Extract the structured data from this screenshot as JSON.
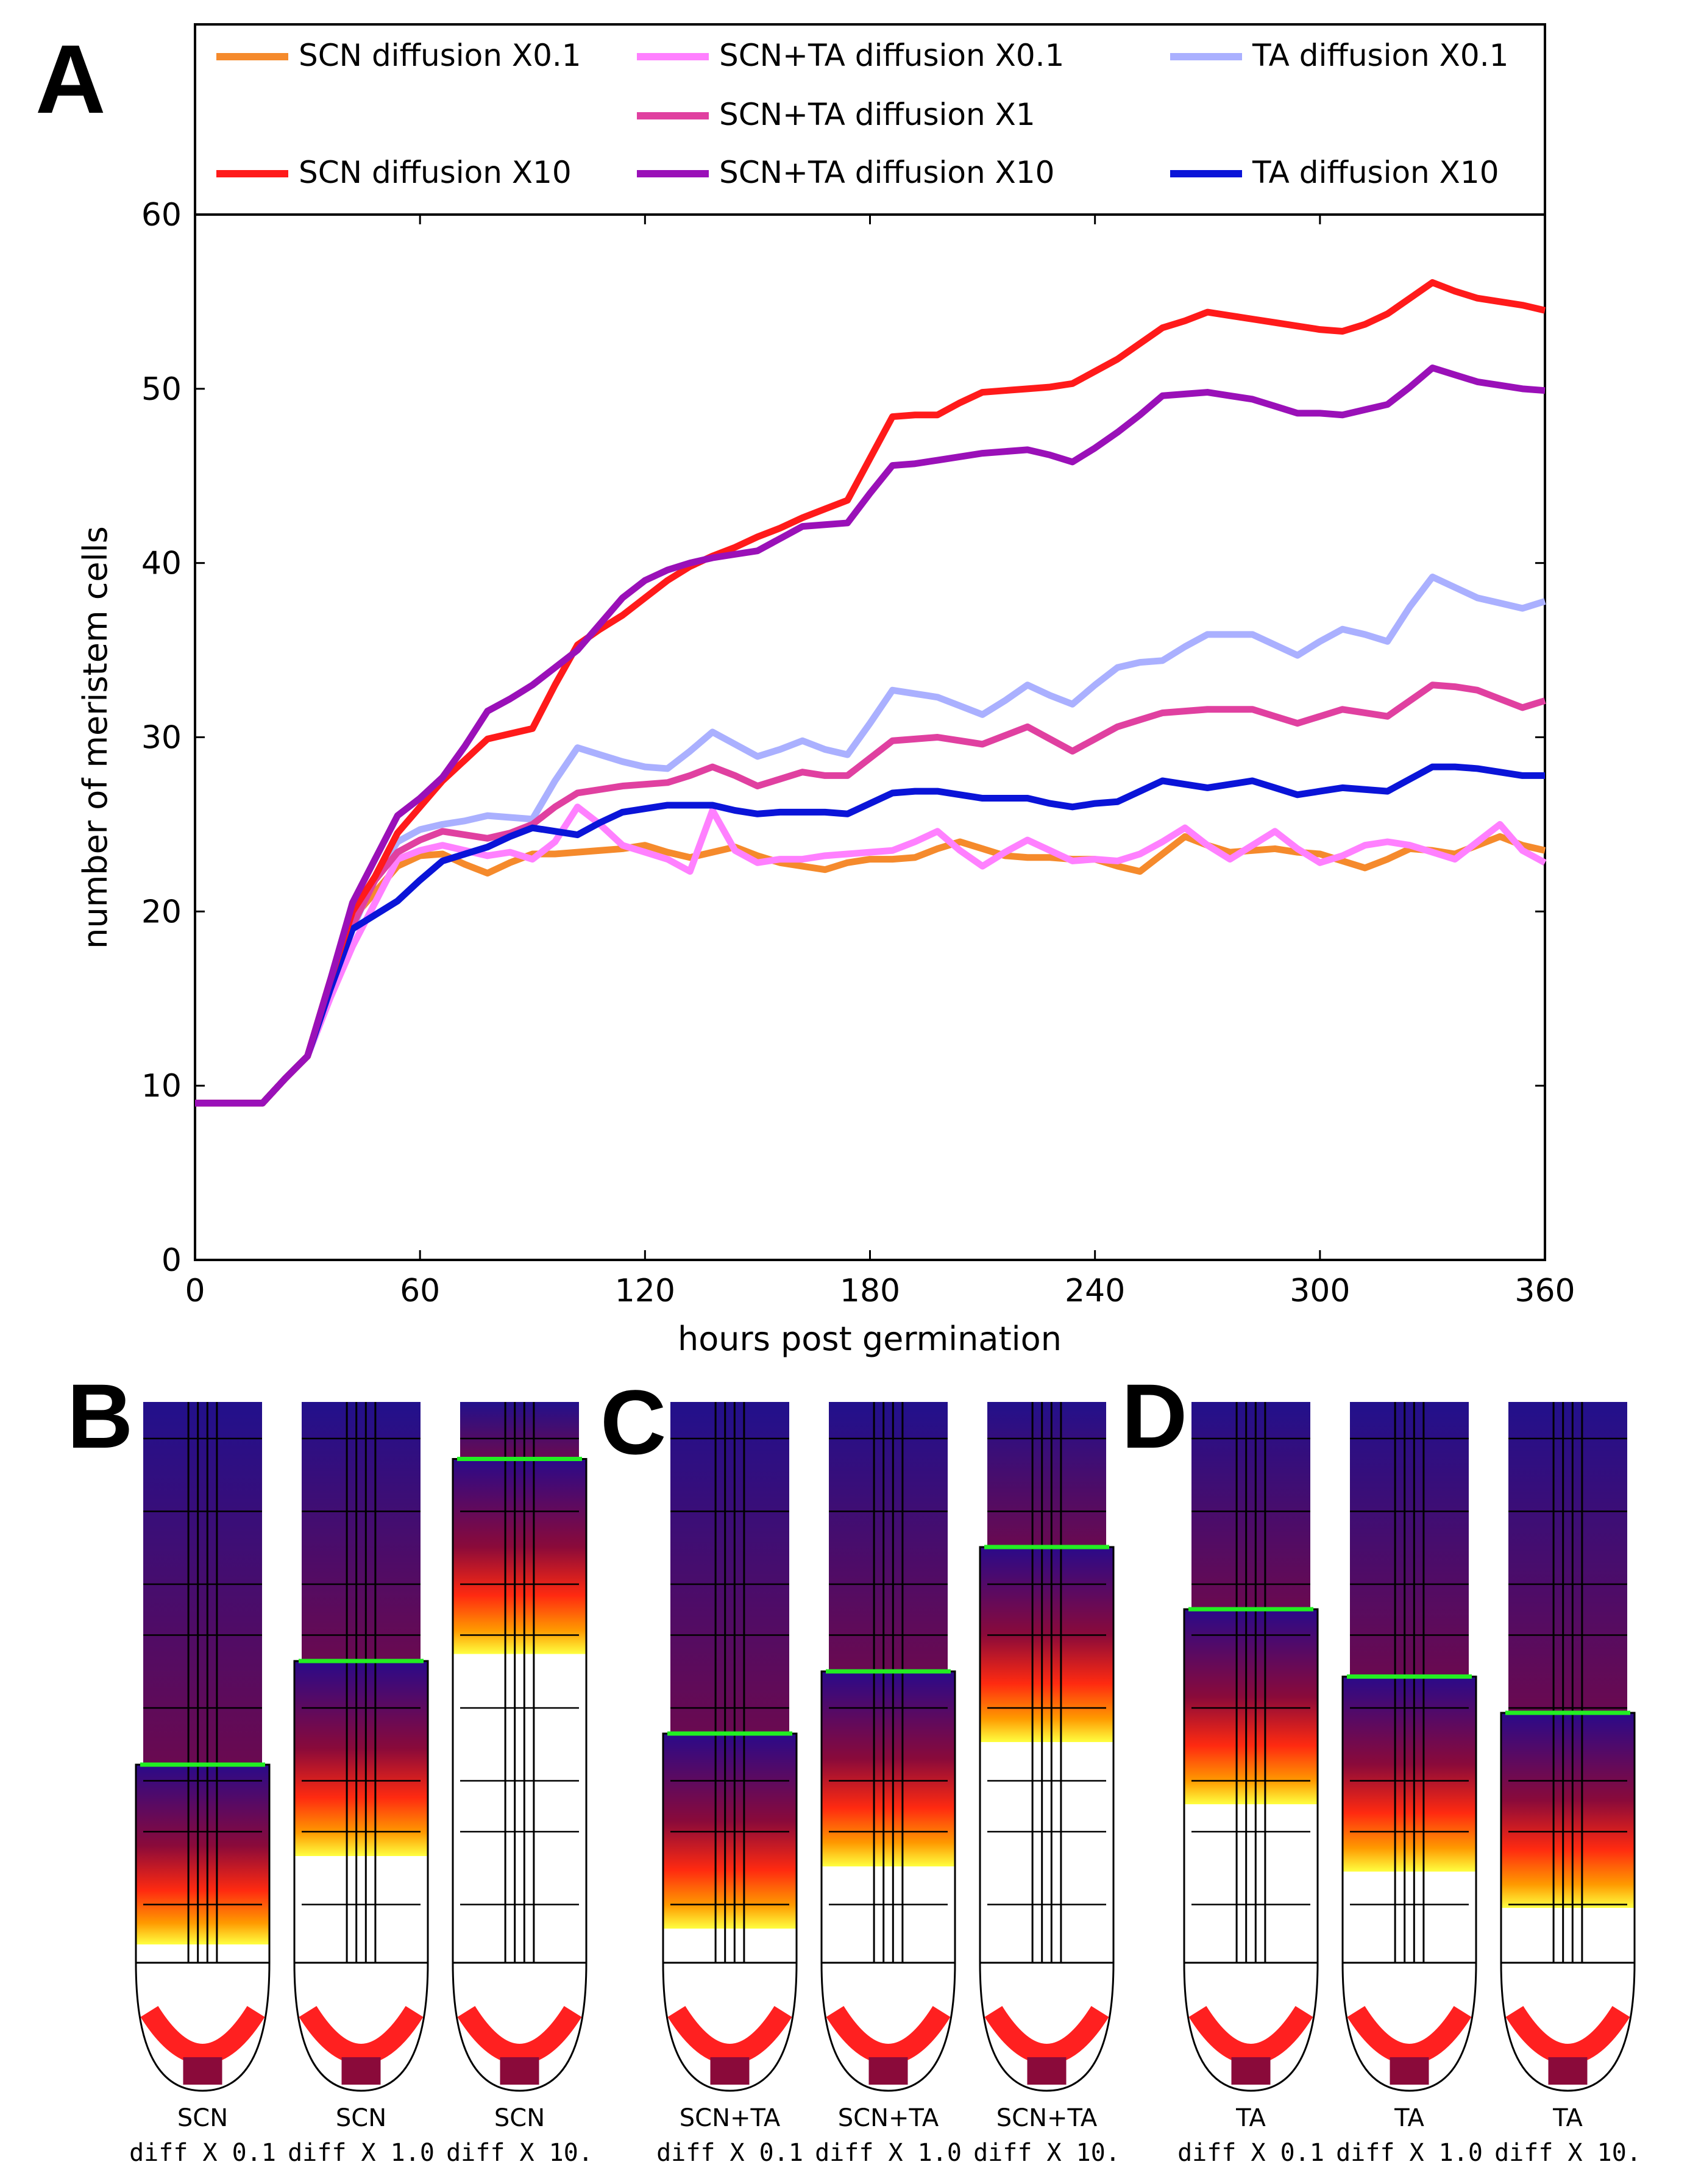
{
  "panels": {
    "A": "A",
    "B": "B",
    "C": "C",
    "D": "D"
  },
  "chart_data": {
    "type": "line",
    "title": "",
    "xlabel": "hours post germination",
    "ylabel": "number of meristem cells",
    "xlim": [
      0,
      360
    ],
    "ylim": [
      0,
      60
    ],
    "xticks": [
      0,
      60,
      120,
      180,
      240,
      300,
      360
    ],
    "yticks": [
      0,
      10,
      20,
      30,
      40,
      50,
      60
    ],
    "grid": false,
    "legend_position": "top",
    "x": [
      0,
      6,
      12,
      18,
      24,
      30,
      36,
      42,
      48,
      54,
      60,
      66,
      72,
      78,
      84,
      90,
      96,
      102,
      108,
      114,
      120,
      126,
      132,
      138,
      144,
      150,
      156,
      162,
      168,
      174,
      180,
      186,
      192,
      198,
      204,
      210,
      216,
      222,
      228,
      234,
      240,
      246,
      252,
      258,
      264,
      270,
      276,
      282,
      288,
      294,
      300,
      306,
      312,
      318,
      324,
      330,
      336,
      342,
      348,
      354,
      360
    ],
    "series": [
      {
        "name": "SCN diffusion X0.1",
        "color": "#f58a2c",
        "values": [
          9,
          9,
          9,
          9,
          10.4,
          11.7,
          15.5,
          19.6,
          21.1,
          22.6,
          23.2,
          23.3,
          22.7,
          22.2,
          22.8,
          23.3,
          23.3,
          23.4,
          23.5,
          23.6,
          23.8,
          23.4,
          23.1,
          23.4,
          23.7,
          23.2,
          22.8,
          22.6,
          22.4,
          22.8,
          23.0,
          23.0,
          23.1,
          23.6,
          24.0,
          23.6,
          23.2,
          23.1,
          23.1,
          23.0,
          23.0,
          22.6,
          22.3,
          23.3,
          24.3,
          23.8,
          23.4,
          23.5,
          23.6,
          23.4,
          23.3,
          22.9,
          22.5,
          23.0,
          23.6,
          23.5,
          23.3,
          23.8,
          24.3,
          23.8,
          23.5
        ]
      },
      {
        "name": "SCN+TA diffusion X0.1",
        "color": "#ff80ff",
        "values": [
          9,
          9,
          9,
          9,
          10.4,
          11.7,
          15.0,
          18.0,
          20.5,
          23.0,
          23.5,
          23.8,
          23.5,
          23.2,
          23.4,
          23.0,
          24.0,
          26.0,
          25.0,
          23.8,
          23.4,
          23.0,
          22.3,
          25.8,
          23.5,
          22.8,
          23.0,
          23.0,
          23.2,
          23.3,
          23.4,
          23.5,
          24.0,
          24.6,
          23.5,
          22.6,
          23.4,
          24.1,
          23.5,
          22.9,
          23.0,
          22.9,
          23.3,
          24.0,
          24.8,
          23.8,
          23.0,
          23.8,
          24.6,
          23.6,
          22.8,
          23.2,
          23.8,
          24.0,
          23.8,
          23.4,
          23.0,
          24.0,
          25.0,
          23.5,
          22.8
        ]
      },
      {
        "name": "TA diffusion X0.1",
        "color": "#aab0ff",
        "values": [
          9,
          9,
          9,
          9,
          10.4,
          11.7,
          15.5,
          19.0,
          22.0,
          24.0,
          24.7,
          25.0,
          25.2,
          25.5,
          25.4,
          25.3,
          27.5,
          29.4,
          29.0,
          28.6,
          28.3,
          28.2,
          29.2,
          30.3,
          29.6,
          28.9,
          29.3,
          29.8,
          29.3,
          29.0,
          30.8,
          32.7,
          32.5,
          32.3,
          31.8,
          31.3,
          32.1,
          33.0,
          32.4,
          31.9,
          33.0,
          34.0,
          34.3,
          34.4,
          35.2,
          35.9,
          35.9,
          35.9,
          35.3,
          34.7,
          35.5,
          36.2,
          35.9,
          35.5,
          37.5,
          39.2,
          38.6,
          38.0,
          37.7,
          37.4,
          37.8
        ]
      },
      {
        "name": "SCN+TA diffusion X1",
        "color": "#e040a0",
        "values": [
          9,
          9,
          9,
          9,
          10.4,
          11.7,
          16.0,
          19.2,
          21.8,
          23.4,
          24.1,
          24.6,
          24.4,
          24.2,
          24.5,
          25.0,
          26.0,
          26.8,
          27.0,
          27.2,
          27.3,
          27.4,
          27.8,
          28.3,
          27.8,
          27.2,
          27.6,
          28.0,
          27.8,
          27.8,
          28.8,
          29.8,
          29.9,
          30.0,
          29.8,
          29.6,
          30.1,
          30.6,
          29.9,
          29.2,
          29.9,
          30.6,
          31.0,
          31.4,
          31.5,
          31.6,
          31.6,
          31.6,
          31.2,
          30.8,
          31.2,
          31.6,
          31.4,
          31.2,
          32.1,
          33.0,
          32.9,
          32.7,
          32.2,
          31.7,
          32.1
        ]
      },
      {
        "name": "TA diffusion X10",
        "color": "#0a14d8",
        "values": [
          9,
          9,
          9,
          9,
          10.4,
          11.7,
          15.5,
          19.0,
          19.8,
          20.6,
          21.8,
          22.9,
          23.3,
          23.7,
          24.3,
          24.8,
          24.6,
          24.4,
          25.1,
          25.7,
          25.9,
          26.1,
          26.1,
          26.1,
          25.8,
          25.6,
          25.7,
          25.7,
          25.7,
          25.6,
          26.2,
          26.8,
          26.9,
          26.9,
          26.7,
          26.5,
          26.5,
          26.5,
          26.2,
          26.0,
          26.2,
          26.3,
          26.9,
          27.5,
          27.3,
          27.1,
          27.3,
          27.5,
          27.1,
          26.7,
          26.9,
          27.1,
          27.0,
          26.9,
          27.6,
          28.3,
          28.3,
          28.2,
          28.0,
          27.8,
          27.8
        ]
      },
      {
        "name": "SCN diffusion X10",
        "color": "#ff1a1a",
        "values": [
          9,
          9,
          9,
          9,
          10.4,
          11.7,
          16.0,
          20.0,
          22.0,
          24.5,
          26.0,
          27.5,
          28.7,
          29.9,
          30.2,
          30.5,
          33.0,
          35.3,
          36.2,
          37.0,
          38.0,
          39.0,
          39.8,
          40.4,
          40.9,
          41.5,
          42.0,
          42.6,
          43.1,
          43.6,
          46.0,
          48.4,
          48.5,
          48.5,
          49.2,
          49.8,
          49.9,
          50.0,
          50.1,
          50.3,
          51.0,
          51.7,
          52.6,
          53.5,
          53.9,
          54.4,
          54.2,
          54.0,
          53.8,
          53.6,
          53.4,
          53.3,
          53.7,
          54.3,
          55.2,
          56.1,
          55.6,
          55.2,
          55.0,
          54.8,
          54.5
        ]
      },
      {
        "name": "SCN+TA diffusion X10",
        "color": "#9a10b8",
        "values": [
          9,
          9,
          9,
          9,
          10.4,
          11.7,
          16.0,
          20.5,
          23.0,
          25.5,
          26.5,
          27.7,
          29.5,
          31.5,
          32.2,
          33.0,
          34.0,
          35.0,
          36.5,
          38.0,
          39.0,
          39.6,
          40.0,
          40.3,
          40.5,
          40.7,
          41.4,
          42.1,
          42.2,
          42.3,
          44.0,
          45.6,
          45.7,
          45.9,
          46.1,
          46.3,
          46.4,
          46.5,
          46.2,
          45.8,
          46.6,
          47.5,
          48.5,
          49.6,
          49.7,
          49.8,
          49.6,
          49.4,
          49.0,
          48.6,
          48.6,
          48.5,
          48.8,
          49.1,
          50.1,
          51.2,
          50.8,
          50.4,
          50.2,
          50.0,
          49.9
        ]
      }
    ],
    "legend": [
      {
        "label": "SCN diffusion X0.1",
        "color": "#f58a2c"
      },
      {
        "label": "SCN+TA diffusion X0.1",
        "color": "#ff80ff"
      },
      {
        "label": "TA diffusion X0.1",
        "color": "#aab0ff"
      },
      {
        "label": "SCN+TA diffusion X1",
        "color": "#e040a0"
      },
      {
        "label": "SCN diffusion X10",
        "color": "#ff1a1a"
      },
      {
        "label": "SCN+TA diffusion X10",
        "color": "#9a10b8"
      },
      {
        "label": "TA diffusion X10",
        "color": "#0a14d8"
      }
    ]
  },
  "root_panels": [
    {
      "panel": "B",
      "label_line1": "SCN",
      "label_line2": "diff X 0.1",
      "boundary_fraction": 0.7
    },
    {
      "panel": "B",
      "label_line1": "SCN",
      "label_line2": "diff X 1.0",
      "boundary_fraction": 0.5
    },
    {
      "panel": "B",
      "label_line1": "SCN",
      "label_line2": "diff X 10.",
      "boundary_fraction": 0.11
    },
    {
      "panel": "C",
      "label_line1": "SCN+TA",
      "label_line2": "diff X 0.1",
      "boundary_fraction": 0.64
    },
    {
      "panel": "C",
      "label_line1": "SCN+TA",
      "label_line2": "diff X 1.0",
      "boundary_fraction": 0.52
    },
    {
      "panel": "C",
      "label_line1": "SCN+TA",
      "label_line2": "diff X 10.",
      "boundary_fraction": 0.28
    },
    {
      "panel": "D",
      "label_line1": "TA",
      "label_line2": "diff X 0.1",
      "boundary_fraction": 0.4
    },
    {
      "panel": "D",
      "label_line1": "TA",
      "label_line2": "diff X 1.0",
      "boundary_fraction": 0.53
    },
    {
      "panel": "D",
      "label_line1": "TA",
      "label_line2": "diff X 10.",
      "boundary_fraction": 0.6
    }
  ]
}
